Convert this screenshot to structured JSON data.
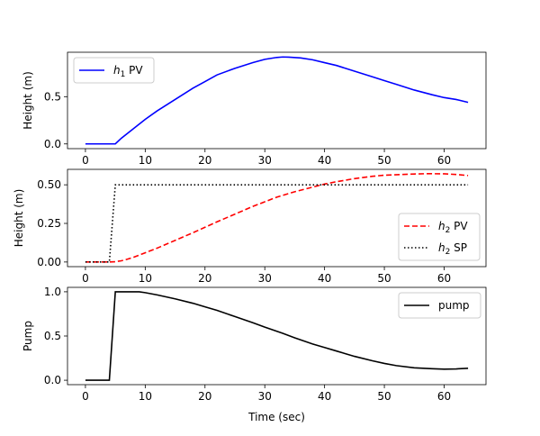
{
  "chart_data": [
    {
      "type": "line",
      "xlabel": "",
      "ylabel": "Height (m)",
      "xlim": [
        -3,
        67
      ],
      "ylim": [
        -0.05,
        0.97
      ],
      "xticks": [
        0,
        10,
        20,
        30,
        40,
        50,
        60
      ],
      "xtick_labels": [
        "0",
        "10",
        "20",
        "30",
        "40",
        "50",
        "60"
      ],
      "yticks": [
        0,
        0.5
      ],
      "ytick_labels": [
        "0.0",
        "0.5"
      ],
      "legend_position": "top-left",
      "series": [
        {
          "name": "h1 PV",
          "legend_main": "h",
          "legend_sub": "1",
          "legend_rest": " PV",
          "color": "#0000ff",
          "dash": "solid",
          "points": [
            [
              0,
              0
            ],
            [
              5,
              0
            ],
            [
              6,
              0.06
            ],
            [
              8,
              0.16
            ],
            [
              10,
              0.26
            ],
            [
              12,
              0.35
            ],
            [
              15,
              0.47
            ],
            [
              18,
              0.59
            ],
            [
              20,
              0.66
            ],
            [
              22,
              0.73
            ],
            [
              25,
              0.8
            ],
            [
              28,
              0.86
            ],
            [
              30,
              0.895
            ],
            [
              32,
              0.915
            ],
            [
              33,
              0.92
            ],
            [
              34,
              0.918
            ],
            [
              36,
              0.91
            ],
            [
              38,
              0.89
            ],
            [
              40,
              0.86
            ],
            [
              42,
              0.83
            ],
            [
              45,
              0.77
            ],
            [
              48,
              0.71
            ],
            [
              50,
              0.67
            ],
            [
              52,
              0.63
            ],
            [
              55,
              0.57
            ],
            [
              58,
              0.52
            ],
            [
              60,
              0.49
            ],
            [
              62,
              0.47
            ],
            [
              64,
              0.44
            ]
          ]
        }
      ]
    },
    {
      "type": "line",
      "xlabel": "",
      "ylabel": "Height (m)",
      "xlim": [
        -3,
        67
      ],
      "ylim": [
        -0.03,
        0.6
      ],
      "xticks": [
        0,
        10,
        20,
        30,
        40,
        50,
        60
      ],
      "xtick_labels": [
        "0",
        "10",
        "20",
        "30",
        "40",
        "50",
        "60"
      ],
      "yticks": [
        0,
        0.25,
        0.5
      ],
      "ytick_labels": [
        "0.00",
        "0.25",
        "0.50"
      ],
      "legend_position": "lower-right",
      "series": [
        {
          "name": "h2 PV",
          "legend_main": "h",
          "legend_sub": "2",
          "legend_rest": " PV",
          "color": "#ff0000",
          "dash": "dashed",
          "points": [
            [
              0,
              0
            ],
            [
              4,
              0
            ],
            [
              5,
              0.002
            ],
            [
              6,
              0.008
            ],
            [
              7,
              0.018
            ],
            [
              8,
              0.03
            ],
            [
              10,
              0.06
            ],
            [
              12,
              0.09
            ],
            [
              15,
              0.14
            ],
            [
              18,
              0.19
            ],
            [
              20,
              0.225
            ],
            [
              22,
              0.26
            ],
            [
              25,
              0.31
            ],
            [
              28,
              0.36
            ],
            [
              30,
              0.39
            ],
            [
              32,
              0.42
            ],
            [
              35,
              0.455
            ],
            [
              38,
              0.485
            ],
            [
              40,
              0.505
            ],
            [
              42,
              0.52
            ],
            [
              45,
              0.54
            ],
            [
              48,
              0.555
            ],
            [
              50,
              0.562
            ],
            [
              53,
              0.567
            ],
            [
              55,
              0.57
            ],
            [
              57,
              0.572
            ],
            [
              60,
              0.571
            ],
            [
              62,
              0.567
            ],
            [
              64,
              0.56
            ]
          ]
        },
        {
          "name": "h2 SP",
          "legend_main": "h",
          "legend_sub": "2",
          "legend_rest": " SP",
          "color": "#000000",
          "dash": "dotted",
          "points": [
            [
              0,
              0
            ],
            [
              4,
              0
            ],
            [
              5,
              0.5
            ],
            [
              64,
              0.5
            ]
          ]
        }
      ]
    },
    {
      "type": "line",
      "xlabel": "Time (sec)",
      "ylabel": "Pump",
      "xlim": [
        -3,
        67
      ],
      "ylim": [
        -0.05,
        1.05
      ],
      "xticks": [
        0,
        10,
        20,
        30,
        40,
        50,
        60
      ],
      "xtick_labels": [
        "0",
        "10",
        "20",
        "30",
        "40",
        "50",
        "60"
      ],
      "yticks": [
        0,
        0.5,
        1
      ],
      "ytick_labels": [
        "0.0",
        "0.5",
        "1.0"
      ],
      "legend_position": "top-right",
      "series": [
        {
          "name": "pump",
          "legend_main": "pump",
          "legend_sub": "",
          "legend_rest": "",
          "color": "#000000",
          "dash": "solid",
          "points": [
            [
              0,
              0
            ],
            [
              4,
              0
            ],
            [
              5,
              1
            ],
            [
              9,
              1
            ],
            [
              10,
              0.99
            ],
            [
              12,
              0.965
            ],
            [
              15,
              0.92
            ],
            [
              18,
              0.87
            ],
            [
              20,
              0.83
            ],
            [
              22,
              0.79
            ],
            [
              25,
              0.72
            ],
            [
              28,
              0.65
            ],
            [
              30,
              0.6
            ],
            [
              33,
              0.53
            ],
            [
              35,
              0.48
            ],
            [
              38,
              0.41
            ],
            [
              40,
              0.37
            ],
            [
              42,
              0.33
            ],
            [
              45,
              0.27
            ],
            [
              48,
              0.22
            ],
            [
              50,
              0.19
            ],
            [
              52,
              0.165
            ],
            [
              55,
              0.14
            ],
            [
              58,
              0.13
            ],
            [
              60,
              0.125
            ],
            [
              62,
              0.128
            ],
            [
              64,
              0.135
            ]
          ]
        }
      ]
    }
  ]
}
